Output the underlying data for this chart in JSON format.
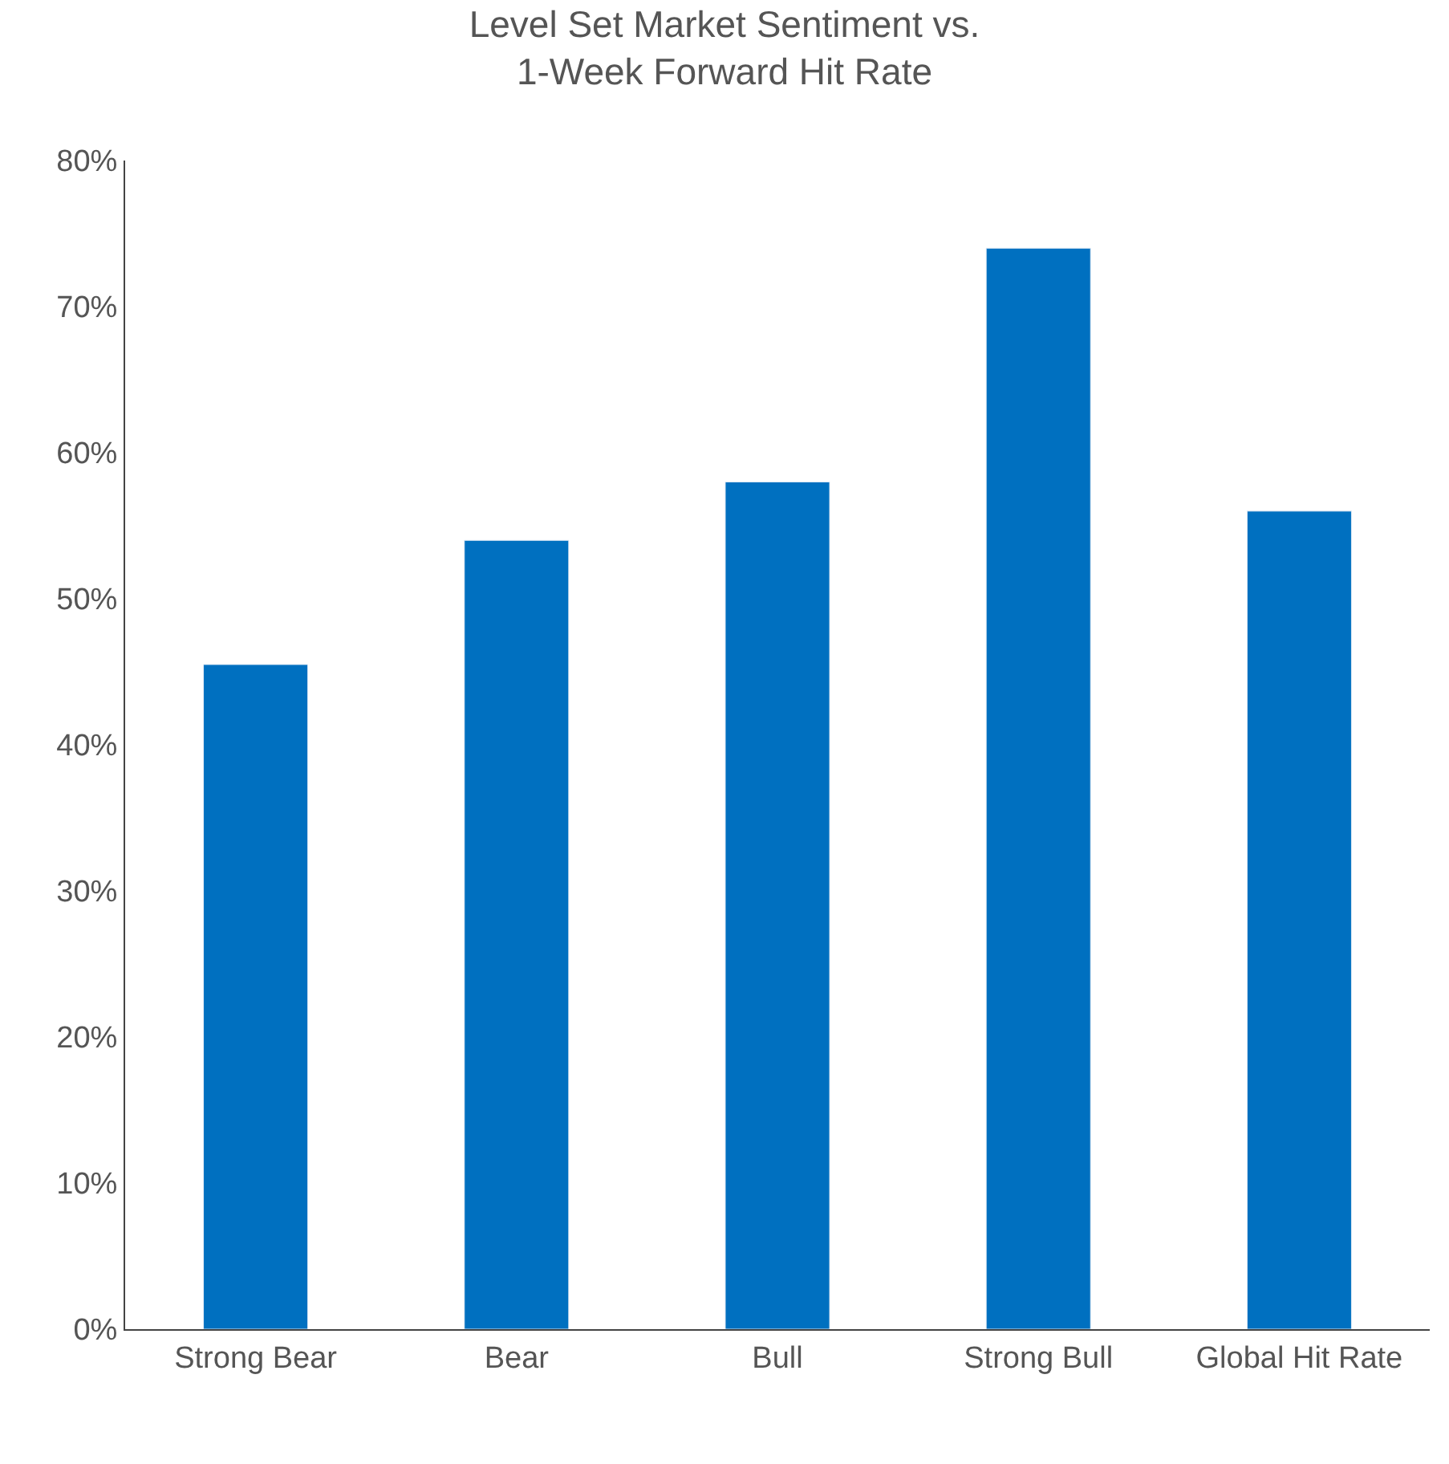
{
  "chart_data": {
    "type": "bar",
    "title": "Level Set Market Sentiment vs.\n1-Week Forward Hit Rate",
    "categories": [
      "Strong Bear",
      "Bear",
      "Bull",
      "Strong Bull",
      "Global Hit Rate"
    ],
    "values": [
      45.5,
      54,
      58,
      74,
      56
    ],
    "color": "#0070c0",
    "ylim": [
      0,
      80
    ],
    "yticks": [
      {
        "value": 0,
        "label": "0%"
      },
      {
        "value": 10,
        "label": "10%"
      },
      {
        "value": 20,
        "label": "20%"
      },
      {
        "value": 30,
        "label": "30%"
      },
      {
        "value": 40,
        "label": "40%"
      },
      {
        "value": 50,
        "label": "50%"
      },
      {
        "value": 60,
        "label": "60%"
      },
      {
        "value": 70,
        "label": "70%"
      },
      {
        "value": 80,
        "label": "80%"
      }
    ],
    "tick_labels": [
      "x",
      "y"
    ]
  }
}
